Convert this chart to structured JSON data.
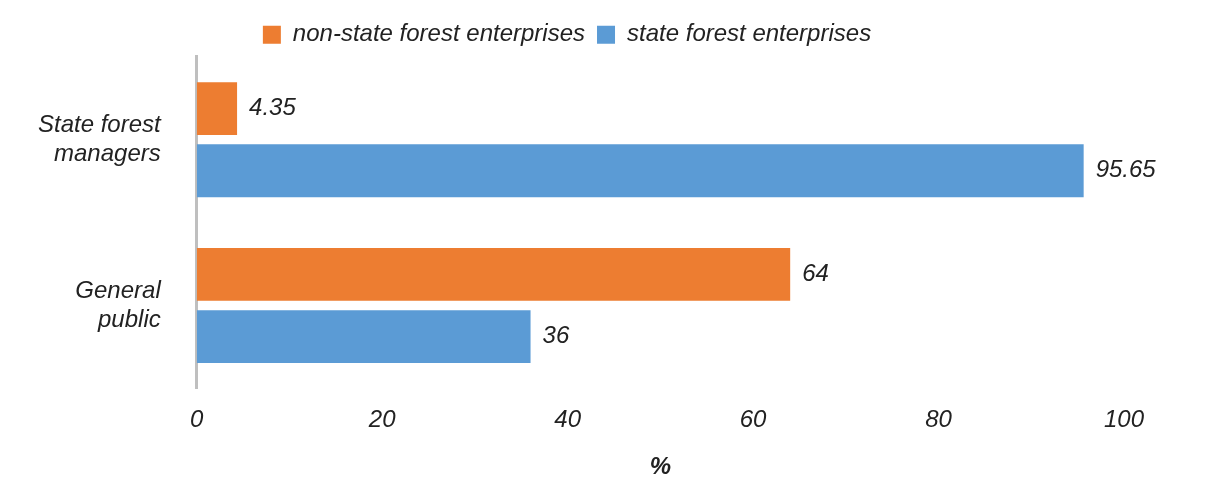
{
  "chart_data": {
    "type": "bar",
    "orientation": "horizontal",
    "categories": [
      "State forest managers",
      "General public"
    ],
    "series": [
      {
        "name": "non-state forest enterprises",
        "color": "#ed7d31",
        "values": [
          4.35,
          64
        ]
      },
      {
        "name": "state forest enterprises",
        "color": "#5b9bd5",
        "values": [
          95.65,
          36
        ]
      }
    ],
    "xlim": [
      0,
      100
    ],
    "xticks": [
      0,
      20,
      40,
      60,
      80,
      100
    ],
    "xlabel": "%",
    "grid": false,
    "legend": "top",
    "data_labels": true
  }
}
